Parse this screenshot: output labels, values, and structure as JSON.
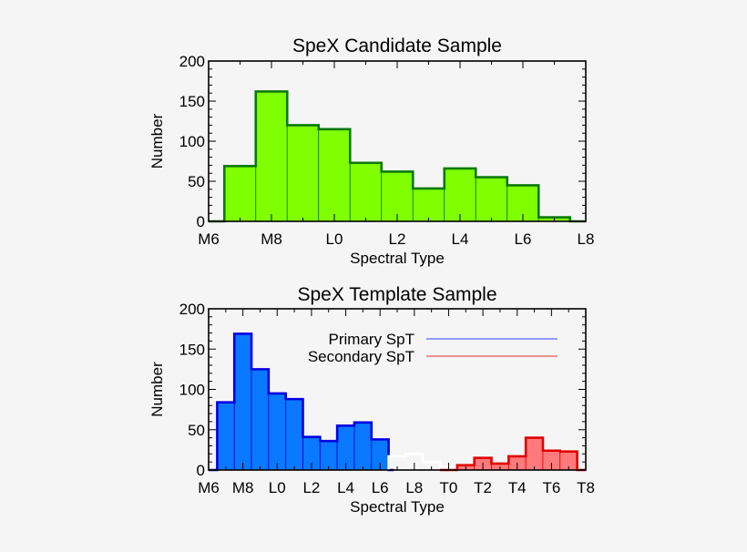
{
  "chart_data": [
    {
      "type": "bar",
      "title": "SpeX Candidate Sample",
      "xlabel": "Spectral Type",
      "ylabel": "Number",
      "ylim": [
        0,
        200
      ],
      "yticks": [
        "0",
        "50",
        "100",
        "150",
        "200"
      ],
      "xtick_labels": [
        "M6",
        "M8",
        "L0",
        "L2",
        "L4",
        "L6",
        "L8"
      ],
      "categories": [
        "M7",
        "M8",
        "M9",
        "L0",
        "L1",
        "L2",
        "L3",
        "L4",
        "L5",
        "L6",
        "L7"
      ],
      "series": [
        {
          "values": [
            69,
            162,
            120,
            115,
            73,
            62,
            41,
            66,
            55,
            45,
            5
          ],
          "fill": "#7fff00",
          "stroke": "#0b7a0b"
        }
      ],
      "grid": false
    },
    {
      "type": "bar",
      "title": "SpeX Template Sample",
      "xlabel": "Spectral Type",
      "ylabel": "Number",
      "ylim": [
        0,
        200
      ],
      "yticks": [
        "0",
        "50",
        "100",
        "150",
        "200"
      ],
      "xtick_labels": [
        "M6",
        "M8",
        "L0",
        "L2",
        "L4",
        "L6",
        "L8",
        "T0",
        "T2",
        "T4",
        "T6",
        "T8"
      ],
      "legend": {
        "position": "top-right"
      },
      "series": [
        {
          "name": "Primary SpT",
          "categories": [
            "M7",
            "M8",
            "M9",
            "L0",
            "L1",
            "L2",
            "L3",
            "L4",
            "L5",
            "L6"
          ],
          "values": [
            84,
            169,
            125,
            95,
            88,
            41,
            36,
            55,
            59,
            38
          ],
          "fill": "#0a78ff",
          "stroke": "#0000e0",
          "legend_color": "#3040ff"
        },
        {
          "categories": [
            "L7",
            "L8",
            "L9",
            "T0"
          ],
          "values": [
            17,
            20,
            10,
            4
          ],
          "fill": "none",
          "stroke": "#ffffff"
        },
        {
          "name": "Secondary SpT",
          "categories": [
            "T0",
            "T1",
            "T2",
            "T3",
            "T4",
            "T5",
            "T6",
            "T7"
          ],
          "values": [
            0,
            6,
            15,
            8,
            17,
            40,
            24,
            23
          ],
          "fill": "#ff7a7a",
          "stroke": "#e00000",
          "legend_color": "#e03030"
        }
      ],
      "grid": false
    }
  ]
}
